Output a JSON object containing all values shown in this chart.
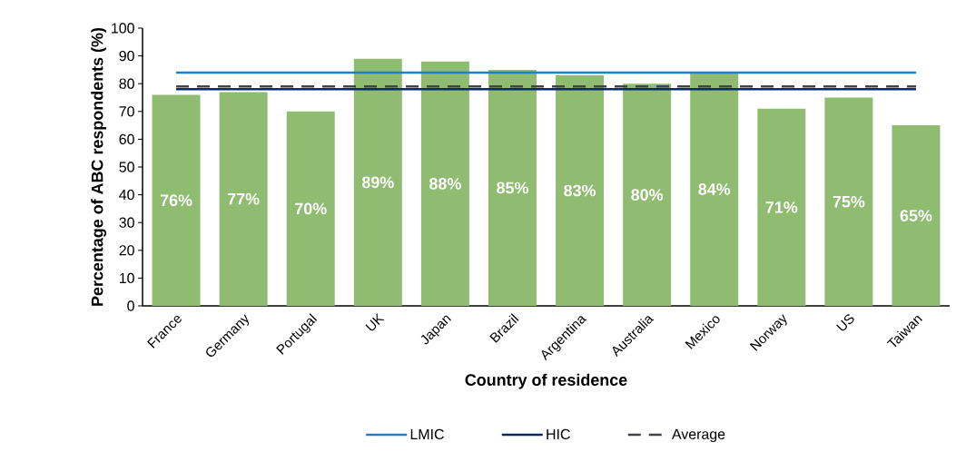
{
  "chart_data": {
    "type": "bar",
    "xlabel": "Country of residence",
    "ylabel": "Percentage of ABC respondents (%)",
    "categories": [
      "France",
      "Germany",
      "Portugal",
      "UK",
      "Japan",
      "Brazil",
      "Argentina",
      "Australia",
      "Mexico",
      "Norway",
      "US",
      "Taiwan"
    ],
    "series": [
      {
        "color": "#8fbc71",
        "values": [
          76,
          77,
          70,
          89,
          88,
          85,
          83,
          80,
          84,
          71,
          75,
          65
        ],
        "value_labels": [
          "76%",
          "77%",
          "70%",
          "89%",
          "88%",
          "85%",
          "83%",
          "80%",
          "84%",
          "71%",
          "75%",
          "65%"
        ]
      },
      {
        "type": "line",
        "name": "LMIC",
        "color": "#1f7fc8",
        "line_style": "solid",
        "values": [
          84,
          84,
          84,
          84,
          84,
          84,
          84,
          84,
          84,
          84,
          84,
          84
        ]
      },
      {
        "type": "line",
        "name": "HIC",
        "color": "#0b2a63",
        "line_style": "solid",
        "values": [
          78,
          78,
          78,
          78,
          78,
          78,
          78,
          78,
          78,
          78,
          78,
          78
        ]
      },
      {
        "type": "line",
        "name": "Average",
        "color": "#404448",
        "line_style": "dashed",
        "values": [
          79,
          79,
          79,
          79,
          79,
          79,
          79,
          79,
          79,
          79,
          79,
          79
        ]
      }
    ],
    "ylim": [
      0,
      100
    ],
    "yticks": [
      0,
      10,
      20,
      30,
      40,
      50,
      60,
      70,
      80,
      90,
      100
    ],
    "grid": false,
    "legend": "bottom",
    "marker": "none"
  }
}
